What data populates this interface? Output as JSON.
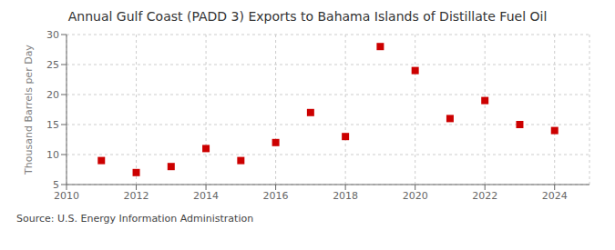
{
  "chart_data": {
    "type": "scatter",
    "title": "Annual Gulf Coast (PADD 3) Exports to Bahama Islands of Distillate Fuel Oil",
    "ylabel": "Thousand Barrels per Day",
    "annotations": [
      "Source: U.S. Energy Information Administration"
    ],
    "x": [
      2011,
      2012,
      2013,
      2014,
      2015,
      2016,
      2017,
      2018,
      2019,
      2020,
      2021,
      2022,
      2023,
      2024
    ],
    "values": [
      9.0,
      7.0,
      8.0,
      11.0,
      9.0,
      12.0,
      17.0,
      13.0,
      28.0,
      24.0,
      16.0,
      19.0,
      15.0,
      14.0
    ],
    "color": "#cc0000",
    "marker": "square",
    "xlim": [
      2010,
      2025
    ],
    "ylim": [
      5,
      30
    ],
    "xticks": [
      2010,
      2012,
      2014,
      2016,
      2018,
      2020,
      2022,
      2024
    ],
    "yticks": [
      5,
      10,
      15,
      20,
      25,
      30
    ],
    "grid": true
  }
}
